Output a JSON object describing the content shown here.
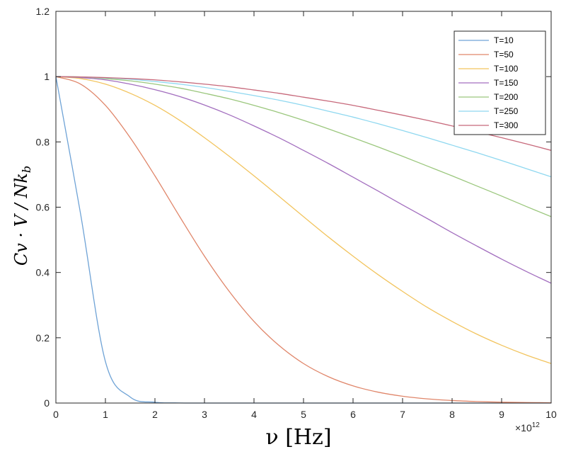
{
  "chart_data": {
    "type": "line",
    "title": "",
    "xlabel": "ν [Hz]",
    "ylabel": "Cv · V / Nk_b",
    "ylabel_parts": {
      "main": "Cv · V / Nk",
      "sub": "b"
    },
    "xlim": [
      0,
      10
    ],
    "ylim": [
      0,
      1.2
    ],
    "x_ticks": [
      0,
      1,
      2,
      3,
      4,
      5,
      6,
      7,
      8,
      9,
      10
    ],
    "x_tick_labels": [
      "0",
      "1",
      "2",
      "3",
      "4",
      "5",
      "6",
      "7",
      "8",
      "9",
      "10"
    ],
    "y_ticks": [
      0,
      0.2,
      0.4,
      0.6,
      0.8,
      1.0,
      1.2
    ],
    "y_tick_labels": [
      "0",
      "0.2",
      "0.4",
      "0.6",
      "0.8",
      "1",
      "1.2"
    ],
    "x_exponent_base": "×10",
    "x_exponent_power": "12",
    "grid": false,
    "legend_position": "top-right",
    "x": [
      0,
      0.5,
      1,
      1.5,
      2,
      2.5,
      3,
      3.5,
      4,
      4.5,
      5,
      5.5,
      6,
      6.5,
      7,
      7.5,
      8,
      8.5,
      9,
      9.5,
      10
    ],
    "series": [
      {
        "name": "T=10",
        "color": "#6fa3d6",
        "values": [
          1.0,
          0.578,
          0.127,
          0.0185,
          0.0025,
          0.0003,
          0.0,
          0.0,
          0.0,
          0.0,
          0.0,
          0.0,
          0.0,
          0.0,
          0.0,
          0.0,
          0.0,
          0.0,
          0.0,
          0.0,
          0.0
        ]
      },
      {
        "name": "T=50",
        "color": "#e0866a",
        "values": [
          1.0,
          0.977,
          0.912,
          0.813,
          0.696,
          0.571,
          0.45,
          0.342,
          0.25,
          0.177,
          0.121,
          0.0808,
          0.0526,
          0.0335,
          0.0209,
          0.0128,
          0.0077,
          0.0046,
          0.0027,
          0.0016,
          0.0009
        ]
      },
      {
        "name": "T=100",
        "color": "#f2c45e",
        "values": [
          1.0,
          0.994,
          0.977,
          0.949,
          0.912,
          0.866,
          0.813,
          0.756,
          0.696,
          0.634,
          0.571,
          0.509,
          0.45,
          0.394,
          0.342,
          0.293,
          0.25,
          0.211,
          0.177,
          0.147,
          0.121
        ]
      },
      {
        "name": "T=150",
        "color": "#a36fbf",
        "values": [
          1.0,
          0.997,
          0.99,
          0.977,
          0.96,
          0.939,
          0.913,
          0.883,
          0.849,
          0.813,
          0.774,
          0.734,
          0.692,
          0.65,
          0.607,
          0.565,
          0.522,
          0.481,
          0.441,
          0.403,
          0.367
        ]
      },
      {
        "name": "T=200",
        "color": "#9bc77d",
        "values": [
          1.0,
          0.999,
          0.994,
          0.987,
          0.977,
          0.965,
          0.949,
          0.932,
          0.912,
          0.89,
          0.866,
          0.84,
          0.813,
          0.785,
          0.756,
          0.726,
          0.696,
          0.665,
          0.634,
          0.602,
          0.571
        ]
      },
      {
        "name": "T=250",
        "color": "#8fd8f0",
        "values": [
          1.0,
          0.999,
          0.996,
          0.992,
          0.985,
          0.977,
          0.967,
          0.955,
          0.942,
          0.928,
          0.912,
          0.894,
          0.876,
          0.856,
          0.835,
          0.813,
          0.79,
          0.767,
          0.743,
          0.718,
          0.693
        ]
      },
      {
        "name": "T=300",
        "color": "#c7697b",
        "values": [
          1.0,
          0.999,
          0.997,
          0.994,
          0.99,
          0.984,
          0.977,
          0.969,
          0.959,
          0.949,
          0.937,
          0.925,
          0.912,
          0.897,
          0.882,
          0.866,
          0.849,
          0.831,
          0.813,
          0.794,
          0.774
        ]
      }
    ]
  }
}
